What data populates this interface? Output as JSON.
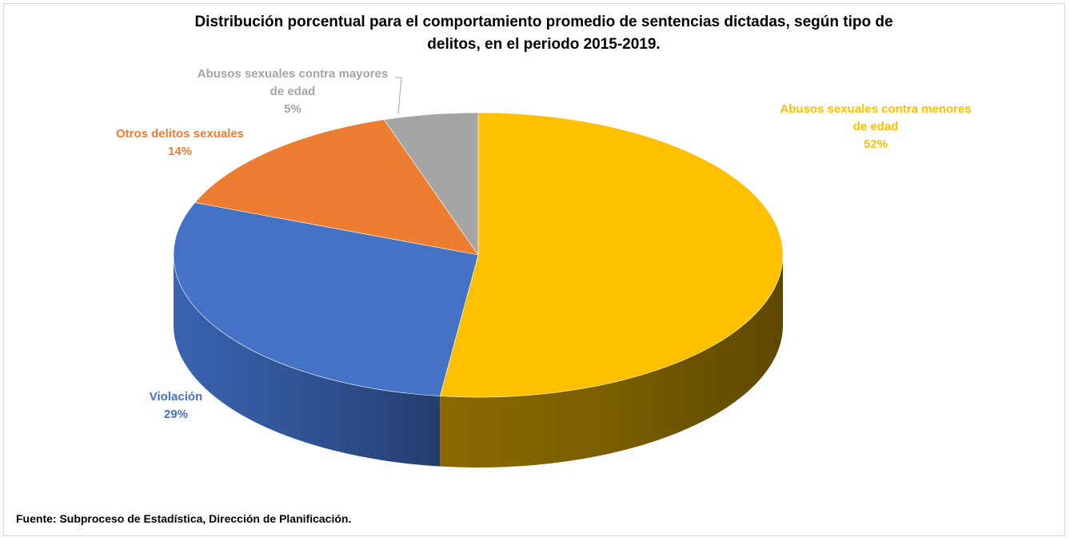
{
  "chart_data": {
    "type": "pie",
    "title_lines": [
      "Distribución porcentual para el comportamiento promedio  de sentencias dictadas, según tipo de",
      "delitos,  en el periodo 2015-2019."
    ],
    "slices": [
      {
        "label_lines": [
          "Abusos sexuales contra menores",
          "de edad"
        ],
        "value": 52,
        "value_label": "52%",
        "color": "#FFC000"
      },
      {
        "label_lines": [
          "Violación"
        ],
        "value": 29,
        "value_label": "29%",
        "color": "#4472C4"
      },
      {
        "label_lines": [
          "Otros delitos sexuales"
        ],
        "value": 14,
        "value_label": "14%",
        "color": "#ED7D31"
      },
      {
        "label_lines": [
          "Abusos sexuales contra mayores",
          "de edad"
        ],
        "value": 5,
        "value_label": "5%",
        "color": "#A5A5A5"
      }
    ],
    "legend": "none"
  },
  "source": "Fuente: Subproceso de Estadística, Dirección de Planificación."
}
